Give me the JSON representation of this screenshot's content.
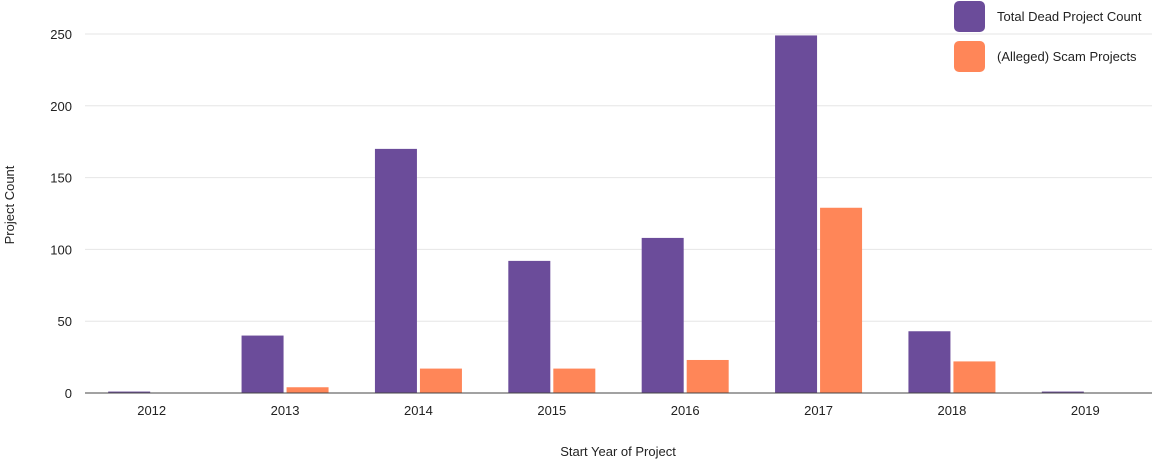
{
  "chart_data": {
    "type": "bar",
    "categories": [
      "2012",
      "2013",
      "2014",
      "2015",
      "2016",
      "2017",
      "2018",
      "2019"
    ],
    "series": [
      {
        "name": "Total Dead Project Count",
        "color": "#6b4c9a",
        "values": [
          1,
          40,
          170,
          92,
          108,
          249,
          43,
          1
        ]
      },
      {
        "name": "(Alleged) Scam Projects",
        "color": "#ff8658",
        "values": [
          0,
          4,
          17,
          17,
          23,
          129,
          22,
          0
        ]
      }
    ],
    "xlabel": "Start Year of Project",
    "ylabel": "Project Count",
    "ylim": [
      0,
      260
    ],
    "yticks": [
      0,
      50,
      100,
      150,
      200,
      250
    ],
    "grid": true,
    "legend_position": "top-right"
  }
}
